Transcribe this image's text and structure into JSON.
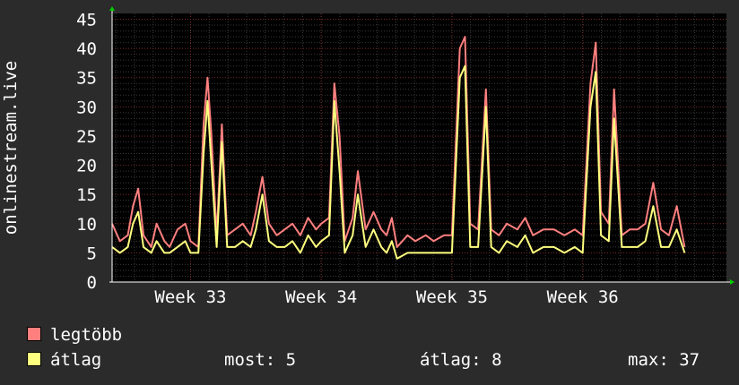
{
  "chart_data": {
    "type": "line",
    "ylabel": "onlinestream.live",
    "xlabel": "",
    "ylim": [
      0,
      46
    ],
    "yticks": [
      0,
      5,
      10,
      15,
      20,
      25,
      30,
      35,
      40,
      45
    ],
    "xlim": [
      32.4,
      37.1
    ],
    "xticks": [
      {
        "value": 33,
        "label": "Week 33"
      },
      {
        "value": 34,
        "label": "Week 34"
      },
      {
        "value": 35,
        "label": "Week 35"
      },
      {
        "value": 36,
        "label": "Week 36"
      }
    ],
    "grid": true,
    "background": "#000000",
    "series": [
      {
        "name": "legtöbb",
        "color": "#ff7f7f",
        "points": [
          [
            32.4,
            10
          ],
          [
            32.46,
            7
          ],
          [
            32.52,
            8
          ],
          [
            32.56,
            13
          ],
          [
            32.6,
            16
          ],
          [
            32.64,
            8
          ],
          [
            32.7,
            6
          ],
          [
            32.74,
            10
          ],
          [
            32.8,
            7
          ],
          [
            32.84,
            6
          ],
          [
            32.9,
            9
          ],
          [
            32.96,
            10
          ],
          [
            33.0,
            7
          ],
          [
            33.06,
            6
          ],
          [
            33.1,
            27
          ],
          [
            33.13,
            35
          ],
          [
            33.16,
            25
          ],
          [
            33.2,
            8
          ],
          [
            33.24,
            27
          ],
          [
            33.28,
            8
          ],
          [
            33.34,
            9
          ],
          [
            33.4,
            10
          ],
          [
            33.46,
            8
          ],
          [
            33.5,
            12
          ],
          [
            33.55,
            18
          ],
          [
            33.6,
            10
          ],
          [
            33.66,
            8
          ],
          [
            33.72,
            9
          ],
          [
            33.78,
            10
          ],
          [
            33.84,
            8
          ],
          [
            33.9,
            11
          ],
          [
            33.96,
            9
          ],
          [
            34.0,
            10
          ],
          [
            34.06,
            11
          ],
          [
            34.1,
            34
          ],
          [
            34.14,
            25
          ],
          [
            34.18,
            7
          ],
          [
            34.24,
            11
          ],
          [
            34.28,
            19
          ],
          [
            34.34,
            9
          ],
          [
            34.4,
            12
          ],
          [
            34.46,
            9
          ],
          [
            34.5,
            8
          ],
          [
            34.54,
            11
          ],
          [
            34.58,
            6
          ],
          [
            34.66,
            8
          ],
          [
            34.72,
            7
          ],
          [
            34.8,
            8
          ],
          [
            34.86,
            7
          ],
          [
            34.94,
            8
          ],
          [
            35.0,
            8
          ],
          [
            35.06,
            40
          ],
          [
            35.1,
            42
          ],
          [
            35.14,
            10
          ],
          [
            35.2,
            9
          ],
          [
            35.26,
            33
          ],
          [
            35.3,
            9
          ],
          [
            35.36,
            8
          ],
          [
            35.42,
            10
          ],
          [
            35.5,
            9
          ],
          [
            35.56,
            11
          ],
          [
            35.62,
            8
          ],
          [
            35.7,
            9
          ],
          [
            35.78,
            9
          ],
          [
            35.86,
            8
          ],
          [
            35.94,
            9
          ],
          [
            36.0,
            8
          ],
          [
            36.06,
            34
          ],
          [
            36.1,
            41
          ],
          [
            36.14,
            12
          ],
          [
            36.2,
            10
          ],
          [
            36.24,
            33
          ],
          [
            36.3,
            8
          ],
          [
            36.36,
            9
          ],
          [
            36.42,
            9
          ],
          [
            36.48,
            10
          ],
          [
            36.54,
            17
          ],
          [
            36.6,
            9
          ],
          [
            36.66,
            8
          ],
          [
            36.72,
            13
          ],
          [
            36.78,
            6
          ]
        ]
      },
      {
        "name": "átlag",
        "color": "#ffff7f",
        "points": [
          [
            32.4,
            6
          ],
          [
            32.46,
            5
          ],
          [
            32.52,
            6
          ],
          [
            32.56,
            10
          ],
          [
            32.6,
            12
          ],
          [
            32.64,
            6
          ],
          [
            32.7,
            5
          ],
          [
            32.74,
            7
          ],
          [
            32.8,
            5
          ],
          [
            32.84,
            5
          ],
          [
            32.9,
            6
          ],
          [
            32.96,
            7
          ],
          [
            33.0,
            5
          ],
          [
            33.06,
            5
          ],
          [
            33.1,
            22
          ],
          [
            33.13,
            31
          ],
          [
            33.16,
            20
          ],
          [
            33.2,
            6
          ],
          [
            33.24,
            24
          ],
          [
            33.28,
            6
          ],
          [
            33.34,
            6
          ],
          [
            33.4,
            7
          ],
          [
            33.46,
            6
          ],
          [
            33.5,
            9
          ],
          [
            33.55,
            15
          ],
          [
            33.6,
            7
          ],
          [
            33.66,
            6
          ],
          [
            33.72,
            6
          ],
          [
            33.78,
            7
          ],
          [
            33.84,
            5
          ],
          [
            33.9,
            8
          ],
          [
            33.96,
            6
          ],
          [
            34.0,
            7
          ],
          [
            34.06,
            8
          ],
          [
            34.1,
            31
          ],
          [
            34.14,
            19
          ],
          [
            34.18,
            5
          ],
          [
            34.24,
            8
          ],
          [
            34.28,
            15
          ],
          [
            34.34,
            6
          ],
          [
            34.4,
            9
          ],
          [
            34.46,
            6
          ],
          [
            34.5,
            5
          ],
          [
            34.54,
            7
          ],
          [
            34.58,
            4
          ],
          [
            34.66,
            5
          ],
          [
            34.72,
            5
          ],
          [
            34.8,
            5
          ],
          [
            34.86,
            5
          ],
          [
            34.94,
            5
          ],
          [
            35.0,
            5
          ],
          [
            35.06,
            35
          ],
          [
            35.1,
            37
          ],
          [
            35.14,
            6
          ],
          [
            35.2,
            6
          ],
          [
            35.26,
            30
          ],
          [
            35.3,
            6
          ],
          [
            35.36,
            5
          ],
          [
            35.42,
            7
          ],
          [
            35.5,
            6
          ],
          [
            35.56,
            8
          ],
          [
            35.62,
            5
          ],
          [
            35.7,
            6
          ],
          [
            35.78,
            6
          ],
          [
            35.86,
            5
          ],
          [
            35.94,
            6
          ],
          [
            36.0,
            5
          ],
          [
            36.06,
            30
          ],
          [
            36.1,
            36
          ],
          [
            36.14,
            8
          ],
          [
            36.2,
            7
          ],
          [
            36.24,
            28
          ],
          [
            36.3,
            6
          ],
          [
            36.36,
            6
          ],
          [
            36.42,
            6
          ],
          [
            36.48,
            7
          ],
          [
            36.54,
            13
          ],
          [
            36.6,
            6
          ],
          [
            36.66,
            6
          ],
          [
            36.72,
            9
          ],
          [
            36.78,
            5
          ]
        ]
      }
    ]
  },
  "legend": {
    "max_label": "legtöbb",
    "avg_label": "átlag",
    "max_color": "#ff7f7f",
    "avg_color": "#ffff7f"
  },
  "stats": {
    "now": "most: 5",
    "avg": "átlag: 8",
    "max": "max: 37"
  }
}
